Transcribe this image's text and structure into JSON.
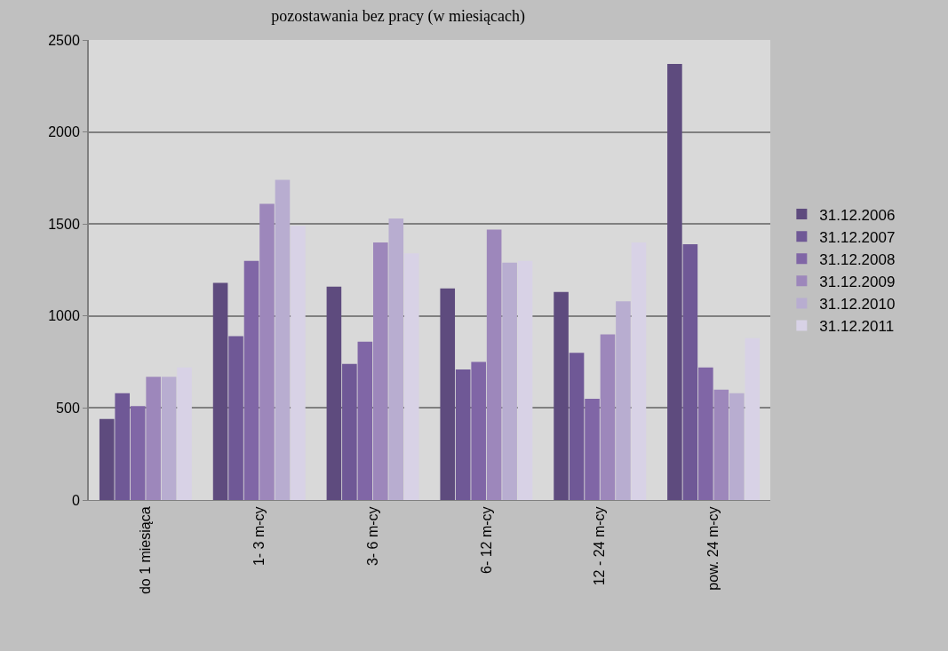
{
  "chart_data": {
    "type": "bar",
    "title": "pozostawania bez pracy (w miesiącach)",
    "categories": [
      "do 1 miesiąca",
      "1- 3 m-cy",
      "3- 6 m-cy",
      "6- 12 m-cy",
      "12 - 24 m-cy",
      "pow. 24 m-cy"
    ],
    "series": [
      {
        "name": "31.12.2006",
        "color": "#5e4b7e",
        "values": [
          440,
          1180,
          1160,
          1150,
          1130,
          2370
        ]
      },
      {
        "name": "31.12.2007",
        "color": "#6f5896",
        "values": [
          580,
          890,
          740,
          710,
          800,
          1390
        ]
      },
      {
        "name": "31.12.2008",
        "color": "#8066a6",
        "values": [
          510,
          1300,
          860,
          750,
          550,
          720
        ]
      },
      {
        "name": "31.12.2009",
        "color": "#9d87bb",
        "values": [
          670,
          1610,
          1400,
          1470,
          900,
          600
        ]
      },
      {
        "name": "31.12.2010",
        "color": "#b8add0",
        "values": [
          670,
          1740,
          1530,
          1290,
          1080,
          580
        ]
      },
      {
        "name": "31.12.2011",
        "color": "#d8d2e6",
        "values": [
          720,
          1490,
          1340,
          1300,
          1400,
          880
        ]
      }
    ],
    "ylim": [
      0,
      2500
    ],
    "yticks": [
      0,
      500,
      1000,
      1500,
      2000,
      2500
    ],
    "grid": "y",
    "legend": "right"
  }
}
